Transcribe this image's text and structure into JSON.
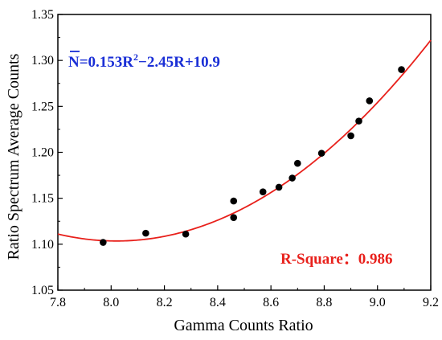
{
  "chart_data": {
    "type": "scatter",
    "xlabel": "Gamma Counts Ratio",
    "ylabel": "Ratio Spectrum Average Counts",
    "xlim": [
      7.8,
      9.2
    ],
    "ylim": [
      1.05,
      1.35
    ],
    "x_ticks": [
      "7.8",
      "8.0",
      "8.2",
      "8.4",
      "8.6",
      "8.8",
      "9.0",
      "9.2"
    ],
    "y_ticks": [
      "1.05",
      "1.10",
      "1.15",
      "1.20",
      "1.25",
      "1.30",
      "1.35"
    ],
    "series": [
      {
        "type": "scatter",
        "color": "#000000",
        "points": [
          {
            "x": 7.97,
            "y": 1.102
          },
          {
            "x": 8.13,
            "y": 1.112
          },
          {
            "x": 8.28,
            "y": 1.111
          },
          {
            "x": 8.46,
            "y": 1.147
          },
          {
            "x": 8.46,
            "y": 1.129
          },
          {
            "x": 8.57,
            "y": 1.157
          },
          {
            "x": 8.63,
            "y": 1.162
          },
          {
            "x": 8.68,
            "y": 1.172
          },
          {
            "x": 8.7,
            "y": 1.188
          },
          {
            "x": 8.79,
            "y": 1.199
          },
          {
            "x": 8.9,
            "y": 1.218
          },
          {
            "x": 8.93,
            "y": 1.234
          },
          {
            "x": 8.97,
            "y": 1.256
          },
          {
            "x": 9.09,
            "y": 1.29
          }
        ]
      },
      {
        "type": "line",
        "color": "#e8201b",
        "fit": {
          "a": 0.153,
          "b": -2.45,
          "c": 10.9,
          "x_min_value": 1.1035
        }
      }
    ],
    "annotations": {
      "equation": {
        "n_bar": "N",
        "main": "=0.153R",
        "sup": "2",
        "rest": "−2.45R+10.9",
        "color": "#1a2fd6"
      },
      "r_square": {
        "text": "R-Square：0.986",
        "color": "#e8201b"
      }
    },
    "grid": false
  }
}
